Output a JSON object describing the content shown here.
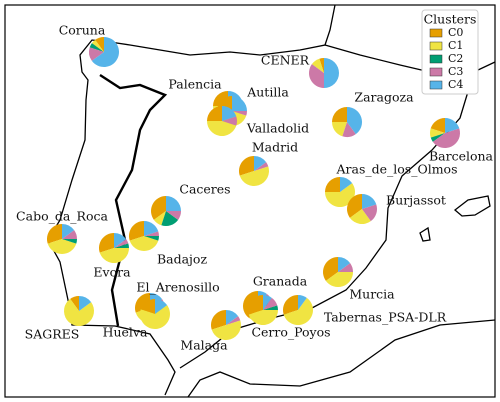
{
  "chart_data": {
    "type": "pie_map",
    "legend_title": "Clusters",
    "legend_position": "upper right",
    "clusters": [
      {
        "name": "C0",
        "color": "#e69f00"
      },
      {
        "name": "C1",
        "color": "#f0e442"
      },
      {
        "name": "C2",
        "color": "#009e73"
      },
      {
        "name": "C3",
        "color": "#cc79a7"
      },
      {
        "name": "C4",
        "color": "#56b4e9"
      }
    ],
    "sites": [
      {
        "name": "Coruna",
        "values": [
          10,
          5,
          5,
          15,
          65
        ]
      },
      {
        "name": "CENER",
        "values": [
          5,
          10,
          0,
          35,
          50
        ]
      },
      {
        "name": "Palencia",
        "values": [
          25,
          55,
          0,
          0,
          20
        ]
      },
      {
        "name": "Autilla",
        "values": [
          20,
          50,
          0,
          5,
          25
        ]
      },
      {
        "name": "Valladolid",
        "values": [
          25,
          45,
          0,
          10,
          20
        ]
      },
      {
        "name": "Zaragoza",
        "values": [
          25,
          20,
          0,
          15,
          40
        ]
      },
      {
        "name": "Barcelona",
        "values": [
          20,
          10,
          5,
          45,
          20
        ]
      },
      {
        "name": "Madrid",
        "values": [
          30,
          50,
          0,
          5,
          15
        ]
      },
      {
        "name": "Aras_de_los_Olmos",
        "values": [
          25,
          60,
          0,
          0,
          15
        ]
      },
      {
        "name": "Burjassot",
        "values": [
          35,
          25,
          0,
          20,
          20
        ]
      },
      {
        "name": "Caceres",
        "values": [
          35,
          10,
          20,
          10,
          25
        ]
      },
      {
        "name": "Cabo_da_Roca",
        "values": [
          30,
          40,
          5,
          10,
          15
        ]
      },
      {
        "name": "Badajoz",
        "values": [
          30,
          40,
          5,
          5,
          20
        ]
      },
      {
        "name": "Evora",
        "values": [
          30,
          45,
          5,
          5,
          15
        ]
      },
      {
        "name": "Murcia",
        "values": [
          35,
          40,
          0,
          10,
          15
        ]
      },
      {
        "name": "El_Arenosillo",
        "values": [
          30,
          50,
          0,
          5,
          15
        ]
      },
      {
        "name": "Huelva",
        "values": [
          20,
          65,
          0,
          0,
          15
        ]
      },
      {
        "name": "SAGRES",
        "values": [
          10,
          75,
          0,
          0,
          15
        ]
      },
      {
        "name": "Granada",
        "values": [
          40,
          35,
          5,
          10,
          10
        ]
      },
      {
        "name": "Cerro_Poyos",
        "values": [
          30,
          45,
          5,
          10,
          10
        ]
      },
      {
        "name": "Tabernas_PSA-DLR",
        "values": [
          30,
          60,
          0,
          0,
          10
        ]
      },
      {
        "name": "Malaga",
        "values": [
          30,
          50,
          0,
          5,
          15
        ]
      }
    ]
  }
}
